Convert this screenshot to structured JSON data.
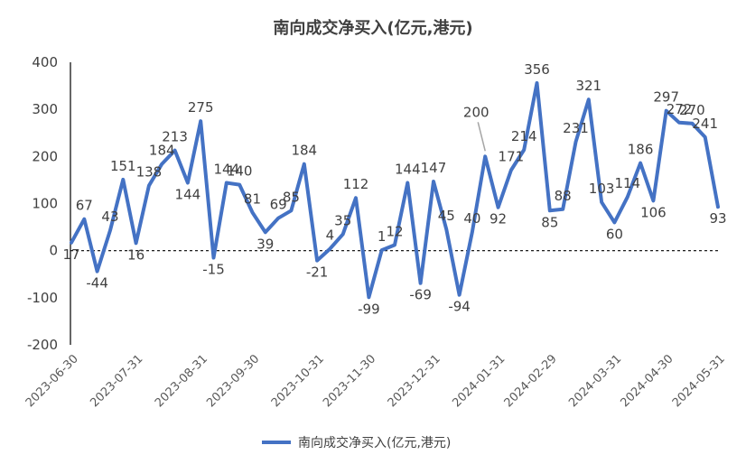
{
  "chart_data": {
    "type": "line",
    "title": "南向成交净买入(亿元,港元)",
    "xlabel": "",
    "ylabel": "",
    "ylim": [
      -200,
      400
    ],
    "yticks": [
      "400",
      "300",
      "200",
      "100",
      "0",
      "-100",
      "-200"
    ],
    "ytick_values": [
      400,
      300,
      200,
      100,
      0,
      -100,
      -200
    ],
    "x_tick_labels": [
      "2023-06-30",
      "2023-07-31",
      "2023-08-31",
      "2023-09-30",
      "2023-10-31",
      "2023-11-30",
      "2023-12-31",
      "2024-01-31",
      "2024-02-29",
      "2024-03-31",
      "2024-04-30",
      "2024-05-31"
    ],
    "legend": "bottom",
    "color": "#4472C4",
    "series": [
      {
        "name": "南向成交净买入(亿元,港元)",
        "values": [
          17,
          67,
          -44,
          43,
          151,
          16,
          138,
          184,
          213,
          144,
          275,
          -15,
          144,
          140,
          81,
          39,
          69,
          85,
          184,
          -21,
          4,
          35,
          112,
          -99,
          1,
          12,
          144,
          -69,
          147,
          45,
          -94,
          40,
          200,
          92,
          171,
          214,
          356,
          85,
          88,
          231,
          321,
          103,
          60,
          114,
          186,
          106,
          297,
          272,
          270,
          241,
          93
        ],
        "labels": [
          "17",
          "67",
          "-44",
          "43",
          "151",
          "16",
          "138",
          "184",
          "213",
          "144",
          "275",
          "-15",
          "144",
          "140",
          "81",
          "39",
          "69",
          "85",
          "184",
          "-21",
          "4",
          "35",
          "112",
          "-99",
          "1",
          "12",
          "144",
          "-69",
          "147",
          "45",
          "-94",
          "40",
          "200",
          "92",
          "171",
          "214",
          "356",
          "85",
          "88",
          "231",
          "321",
          "103",
          "60",
          "114",
          "186",
          "106",
          "297",
          "272",
          "270",
          "241",
          "93"
        ]
      }
    ]
  }
}
